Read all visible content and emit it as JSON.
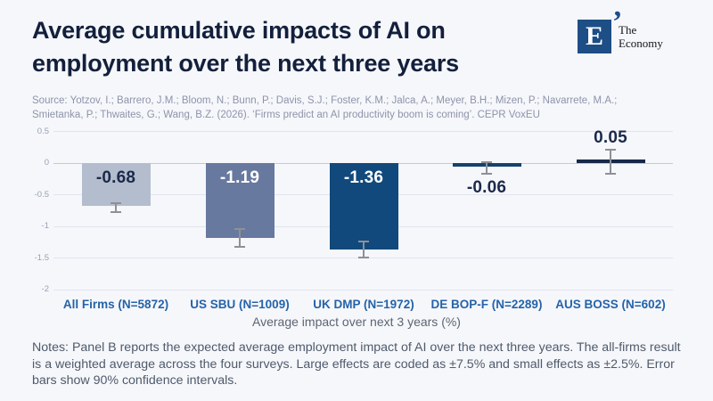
{
  "header": {
    "title_line1": "Average cumulative impacts of AI on",
    "title_line2": "employment over the next three years",
    "logo": {
      "letter": "E",
      "mark": "’",
      "name_line1": "The",
      "name_line2": "Economy"
    }
  },
  "source": {
    "line1": "Source: Yotzov, I.; Barrero, J.M.; Bloom, N.; Bunn, P.; Davis, S.J.; Foster, K.M.; Jalca, A.; Meyer, B.H.; Mizen, P.; Navarrete, M.A.;",
    "line2": "Smietanka, P.; Thwaites, G.; Wang, B.Z. (2026). ‘Firms predict an AI productivity boom is coming’. CEPR VoxEU"
  },
  "chart_data": {
    "type": "bar",
    "title": "Average cumulative impacts of AI on employment over the next three years",
    "xlabel": "Average impact over next 3 years (%)",
    "ylabel": "",
    "ylim": [
      -2,
      0.5
    ],
    "yticks": [
      0.5,
      0,
      -0.5,
      -1,
      -1.5,
      -2
    ],
    "grid": true,
    "categories": [
      "All Firms (N=5872)",
      "US SBU (N=1009)",
      "UK DMP (N=1972)",
      "DE BOP-F (N=2289)",
      "AUS BOSS (N=602)"
    ],
    "values": [
      -0.68,
      -1.19,
      -1.36,
      -0.06,
      0.05
    ],
    "value_labels": [
      "-0.68",
      "-1.19",
      "-1.36",
      "-0.06",
      "0.05"
    ],
    "error_low": [
      -0.77,
      -1.33,
      -1.49,
      -0.17,
      -0.17
    ],
    "error_high": [
      -0.63,
      -1.04,
      -1.24,
      0.01,
      0.21
    ],
    "error_note": "90% confidence intervals",
    "bar_colors": [
      "#b4bdce",
      "#68799f",
      "#11497c",
      "#14426d",
      "#17294a"
    ],
    "label_colors": [
      "#1b2a4a",
      "#ffffff",
      "#ffffff",
      "#1b2a4a",
      "#1b2a4a"
    ],
    "label_placement": [
      "inside",
      "inside",
      "inside",
      "below",
      "above"
    ],
    "legend": null
  },
  "notes": {
    "text": "Notes: Panel B reports the expected average employment impact of AI over the next three years. The all-firms result is a weighted average across the four surveys. Large effects are coded as ±7.5% and small effects as ±2.5%. Error bars show 90% confidence intervals."
  },
  "colors": {
    "background": "#f6f7fb",
    "title": "#13203c",
    "logo_box": "#1d4e86",
    "gridline": "#e2e4ee",
    "zero_line": "#c6c9d6",
    "error_bar": "#8f9096",
    "x_labels": "#2563a8",
    "axis_title": "#5c6572",
    "source_text": "#8d94a9",
    "notes_text": "#4e5a6b"
  }
}
